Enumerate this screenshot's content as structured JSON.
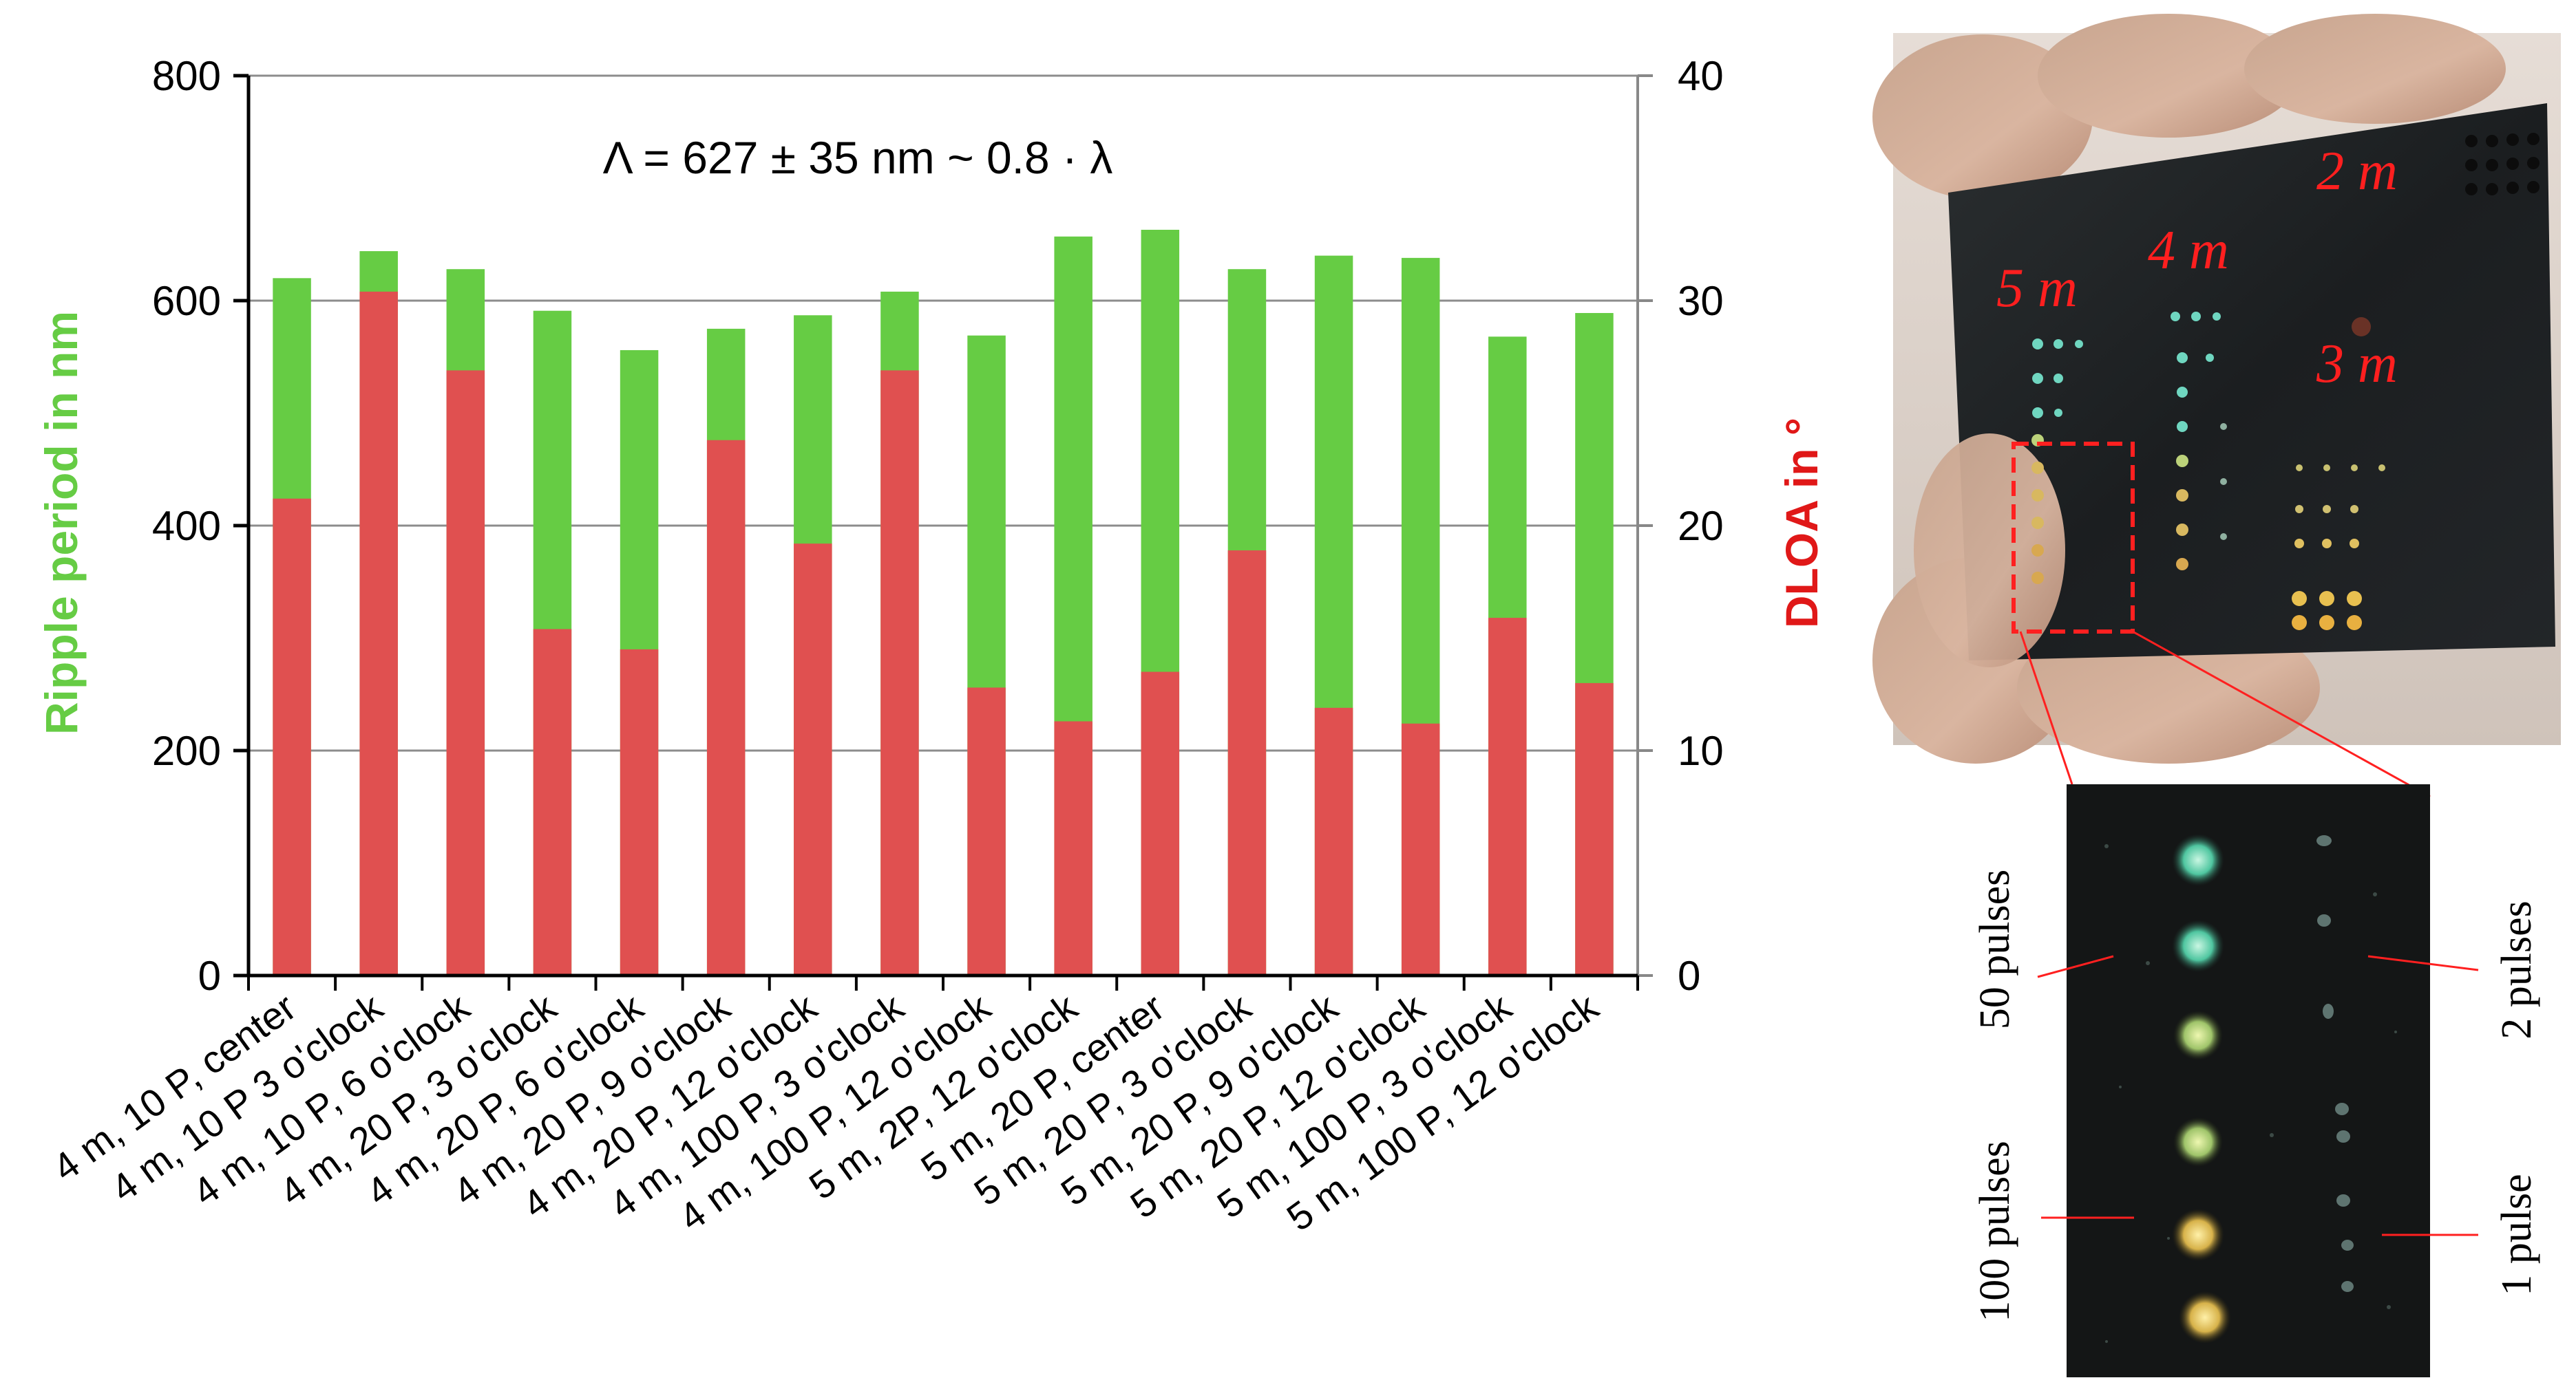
{
  "chart_data": {
    "type": "bar",
    "stacked": true,
    "categories": [
      "4 m, 10 P, center",
      "4 m, 10 P 3 o'clock",
      "4 m, 10 P, 6 o'clock",
      "4 m, 20 P, 3 o'clock",
      "4 m, 20 P, 6 o'clock",
      "4 m, 20 P, 9 o'clock",
      "4 m, 20 P, 12 o'clock",
      "4 m, 100 P, 3 o'clock",
      "4 m, 100 P, 12 o'clock",
      "5 m, 2P, 12 o'clock",
      "5 m, 20 P, center",
      "5 m, 20 P, 3 o'clock",
      "5 m, 20 P, 9 o'clock",
      "5 m, 20 P, 12 o'clock",
      "5 m, 100 P, 3 o'clock",
      "5 m, 100 P, 12 o'clock"
    ],
    "series": [
      {
        "name": "Ripple period in nm",
        "color": "#66cc44",
        "axis": "left",
        "values": [
          620,
          644,
          628,
          591,
          556,
          575,
          587,
          608,
          569,
          657,
          663,
          628,
          640,
          638,
          568,
          589
        ]
      },
      {
        "name": "DLOA in °",
        "color": "#e05050",
        "axis": "right",
        "values": [
          21.2,
          30.4,
          26.9,
          15.4,
          14.5,
          23.8,
          19.2,
          26.9,
          12.8,
          11.3,
          13.5,
          18.9,
          11.9,
          11.2,
          15.9,
          13.0
        ]
      }
    ],
    "ylabel": "Ripple period in nm",
    "y2label": "DLOA in °",
    "ylim": [
      0,
      800
    ],
    "y2lim": [
      0,
      40
    ],
    "yticks": [
      0,
      200,
      400,
      600,
      800
    ],
    "y2ticks": [
      0,
      10,
      20,
      30,
      40
    ],
    "gridlines": true,
    "annotation": "Λ = 627 ± 35 nm  ~ 0.8 · λ",
    "title": ""
  },
  "photo": {
    "labels": [
      "2 m",
      "4 m",
      "5 m",
      "3 m"
    ]
  },
  "inset": {
    "labels_left": [
      "50 pulses",
      "100 pulses"
    ],
    "labels_right": [
      "2 pulses",
      "1 pulse"
    ]
  },
  "colors": {
    "green": "#66cc44",
    "red": "#e05050",
    "label_red": "#ff1f1f",
    "grid": "#8c8c8c"
  }
}
